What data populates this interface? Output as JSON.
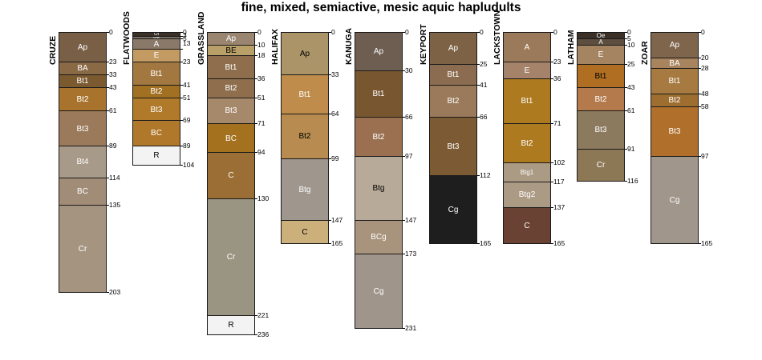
{
  "title": "fine, mixed, semiactive, mesic aquic hapludults",
  "profiles": [
    {
      "name": "CRUZE",
      "horizons": [
        {
          "name": "Ap",
          "top": 0,
          "bottom": 23,
          "color": "#7a5f47",
          "text": "#ffffff"
        },
        {
          "name": "BA",
          "top": 23,
          "bottom": 33,
          "color": "#8a6a45",
          "text": "#ffffff"
        },
        {
          "name": "Bt1",
          "top": 33,
          "bottom": 43,
          "color": "#7b5a30",
          "text": "#ffffff"
        },
        {
          "name": "Bt2",
          "top": 43,
          "bottom": 61,
          "color": "#a8742d",
          "text": "#ffffff"
        },
        {
          "name": "Bt3",
          "top": 61,
          "bottom": 89,
          "color": "#9a7a5a",
          "text": "#ffffff"
        },
        {
          "name": "Bt4",
          "top": 89,
          "bottom": 114,
          "color": "#a89a88",
          "text": "#ffffff"
        },
        {
          "name": "BC",
          "top": 114,
          "bottom": 135,
          "color": "#a18c78",
          "text": "#ffffff"
        },
        {
          "name": "Cr",
          "top": 135,
          "bottom": 203,
          "color": "#a59580",
          "text": "#ffffff"
        }
      ]
    },
    {
      "name": "FLATWOODS",
      "horizons": [
        {
          "name": "Oi",
          "top": 0,
          "bottom": 3,
          "color": "#3a3228",
          "text": "#ffffff"
        },
        {
          "name": "Oe",
          "top": 3,
          "bottom": 5,
          "color": "#7a6e62",
          "text": "#ffffff"
        },
        {
          "name": "A",
          "top": 5,
          "bottom": 13,
          "color": "#8a7868",
          "text": "#ffffff"
        },
        {
          "name": "E",
          "top": 13,
          "bottom": 23,
          "color": "#c29a62",
          "text": "#ffffff"
        },
        {
          "name": "Bt1",
          "top": 23,
          "bottom": 41,
          "color": "#a27840",
          "text": "#ffffff"
        },
        {
          "name": "Bt2",
          "top": 41,
          "bottom": 51,
          "color": "#a27022",
          "text": "#ffffff"
        },
        {
          "name": "Bt3",
          "top": 51,
          "bottom": 69,
          "color": "#b07a2a",
          "text": "#ffffff"
        },
        {
          "name": "BC",
          "top": 69,
          "bottom": 89,
          "color": "#b0782a",
          "text": "#ffffff"
        },
        {
          "name": "R",
          "top": 89,
          "bottom": 104,
          "color": "#f3f3f3",
          "text": "#000000"
        }
      ],
      "labels": [
        0,
        3,
        5,
        13,
        23,
        41,
        51,
        69,
        89,
        104
      ]
    },
    {
      "name": "GRASSLAND",
      "horizons": [
        {
          "name": "Ap",
          "top": 0,
          "bottom": 10,
          "color": "#9a8570",
          "text": "#ffffff"
        },
        {
          "name": "BE",
          "top": 10,
          "bottom": 18,
          "color": "#b8a068",
          "text": "#000000"
        },
        {
          "name": "Bt1",
          "top": 18,
          "bottom": 36,
          "color": "#8e6e4c",
          "text": "#ffffff"
        },
        {
          "name": "Bt2",
          "top": 36,
          "bottom": 51,
          "color": "#8e6e4c",
          "text": "#ffffff"
        },
        {
          "name": "Bt3",
          "top": 51,
          "bottom": 71,
          "color": "#a6886a",
          "text": "#ffffff"
        },
        {
          "name": "BC",
          "top": 71,
          "bottom": 94,
          "color": "#a4721f",
          "text": "#ffffff"
        },
        {
          "name": "C",
          "top": 94,
          "bottom": 130,
          "color": "#9a6e35",
          "text": "#ffffff"
        },
        {
          "name": "Cr",
          "top": 130,
          "bottom": 221,
          "color": "#9a9482",
          "text": "#ffffff"
        },
        {
          "name": "R",
          "top": 221,
          "bottom": 236,
          "color": "#f3f3f3",
          "text": "#000000"
        }
      ]
    },
    {
      "name": "HALIFAX",
      "horizons": [
        {
          "name": "Ap",
          "top": 0,
          "bottom": 33,
          "color": "#ab9468",
          "text": "#000000"
        },
        {
          "name": "Bt1",
          "top": 33,
          "bottom": 64,
          "color": "#bf8c4c",
          "text": "#ffffff"
        },
        {
          "name": "Bt2",
          "top": 64,
          "bottom": 99,
          "color": "#b88c50",
          "text": "#000000"
        },
        {
          "name": "Btg",
          "top": 99,
          "bottom": 147,
          "color": "#9f978e",
          "text": "#ffffff"
        },
        {
          "name": "C",
          "top": 147,
          "bottom": 165,
          "color": "#cbb07c",
          "text": "#000000"
        }
      ]
    },
    {
      "name": "KANUGA",
      "horizons": [
        {
          "name": "Ap",
          "top": 0,
          "bottom": 30,
          "color": "#6e5e52",
          "text": "#ffffff"
        },
        {
          "name": "Bt1",
          "top": 30,
          "bottom": 66,
          "color": "#785630",
          "text": "#ffffff"
        },
        {
          "name": "Bt2",
          "top": 66,
          "bottom": 97,
          "color": "#9a7050",
          "text": "#ffffff"
        },
        {
          "name": "Btg",
          "top": 97,
          "bottom": 147,
          "color": "#b8aa98",
          "text": "#000000"
        },
        {
          "name": "BCg",
          "top": 147,
          "bottom": 173,
          "color": "#a8937c",
          "text": "#ffffff"
        },
        {
          "name": "Cg",
          "top": 173,
          "bottom": 231,
          "color": "#a0958a",
          "text": "#ffffff"
        }
      ]
    },
    {
      "name": "KEYPORT",
      "horizons": [
        {
          "name": "Ap",
          "top": 0,
          "bottom": 25,
          "color": "#7e6246",
          "text": "#ffffff"
        },
        {
          "name": "Bt1",
          "top": 25,
          "bottom": 41,
          "color": "#8c6c50",
          "text": "#ffffff"
        },
        {
          "name": "Bt2",
          "top": 41,
          "bottom": 66,
          "color": "#9a7a5a",
          "text": "#ffffff"
        },
        {
          "name": "Bt3",
          "top": 66,
          "bottom": 112,
          "color": "#7c5a34",
          "text": "#ffffff"
        },
        {
          "name": "Cg",
          "top": 112,
          "bottom": 165,
          "color": "#1e1e1e",
          "text": "#ffffff"
        }
      ]
    },
    {
      "name": "LACKSTOWN",
      "horizons": [
        {
          "name": "A",
          "top": 0,
          "bottom": 23,
          "color": "#9a7a5a",
          "text": "#ffffff"
        },
        {
          "name": "E",
          "top": 23,
          "bottom": 36,
          "color": "#a5826a",
          "text": "#ffffff"
        },
        {
          "name": "Bt1",
          "top": 36,
          "bottom": 71,
          "color": "#ad7a20",
          "text": "#ffffff"
        },
        {
          "name": "Bt2",
          "top": 71,
          "bottom": 102,
          "color": "#ad7a20",
          "text": "#ffffff"
        },
        {
          "name": "Btg1",
          "top": 102,
          "bottom": 117,
          "color": "#ab9a84",
          "text": "#ffffff"
        },
        {
          "name": "Btg2",
          "top": 117,
          "bottom": 137,
          "color": "#ab9a84",
          "text": "#ffffff"
        },
        {
          "name": "C",
          "top": 137,
          "bottom": 165,
          "color": "#6a4234",
          "text": "#ffffff"
        }
      ]
    },
    {
      "name": "LATHAM",
      "horizons": [
        {
          "name": "Oe",
          "top": 0,
          "bottom": 5,
          "color": "#3a3028",
          "text": "#ffffff"
        },
        {
          "name": "A",
          "top": 5,
          "bottom": 10,
          "color": "#5e4e40",
          "text": "#ffffff"
        },
        {
          "name": "E",
          "top": 10,
          "bottom": 25,
          "color": "#a58462",
          "text": "#ffffff"
        },
        {
          "name": "Bt1",
          "top": 25,
          "bottom": 43,
          "color": "#b06e22",
          "text": "#000000"
        },
        {
          "name": "Bt2",
          "top": 43,
          "bottom": 61,
          "color": "#b47a4c",
          "text": "#ffffff"
        },
        {
          "name": "Bt3",
          "top": 61,
          "bottom": 91,
          "color": "#8c7a5e",
          "text": "#ffffff"
        },
        {
          "name": "Cr",
          "top": 91,
          "bottom": 116,
          "color": "#8c7854",
          "text": "#ffffff"
        }
      ]
    },
    {
      "name": "ZOAR",
      "horizons": [
        {
          "name": "Ap",
          "top": 0,
          "bottom": 20,
          "color": "#7e654c",
          "text": "#ffffff"
        },
        {
          "name": "BA",
          "top": 20,
          "bottom": 28,
          "color": "#a8845e",
          "text": "#ffffff"
        },
        {
          "name": "Bt1",
          "top": 28,
          "bottom": 48,
          "color": "#a67a40",
          "text": "#ffffff"
        },
        {
          "name": "Bt2",
          "top": 48,
          "bottom": 58,
          "color": "#9e6e30",
          "text": "#ffffff"
        },
        {
          "name": "Bt3",
          "top": 58,
          "bottom": 97,
          "color": "#b0702c",
          "text": "#ffffff"
        },
        {
          "name": "Cg",
          "top": 97,
          "bottom": 165,
          "color": "#a0968c",
          "text": "#ffffff"
        }
      ]
    }
  ]
}
